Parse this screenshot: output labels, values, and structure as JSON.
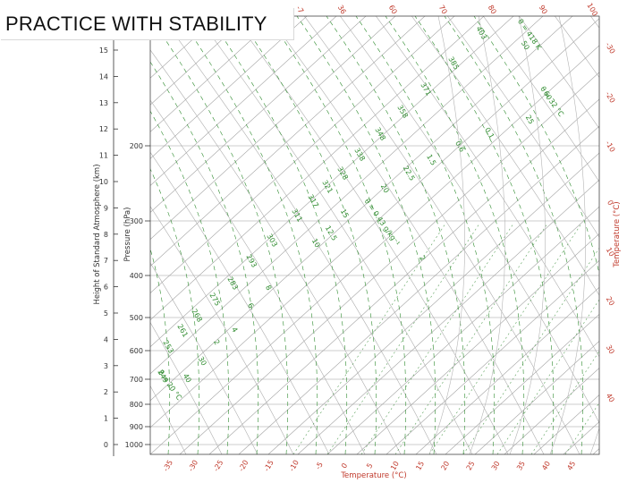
{
  "title": "PRACTICE WITH STABILITY",
  "colors": {
    "isotherm_isobar": "#9a9a9a",
    "dry_adiabat": "#a8a8a8",
    "moist_adiabat": "#2e8b2e",
    "mixing_ratio": "#5aa05a",
    "axis": "#333333",
    "temperature_axis": "#c0392b"
  },
  "chart_data": {
    "type": "diagram",
    "diagram": "skew-T log-P thermodynamic chart",
    "left_axis_label": "Height of Standard Atmosphere (km)",
    "height_ticks": [
      "0",
      "1",
      "2",
      "3",
      "4",
      "5",
      "6",
      "7",
      "8",
      "9",
      "10",
      "11",
      "12",
      "13",
      "14",
      "15"
    ],
    "pressure_axis_label": "Pressure (hPa)",
    "pressure_ticks": [
      "1000",
      "900",
      "800",
      "700",
      "600",
      "500",
      "400",
      "300",
      "200"
    ],
    "bottom_axis_label": "Temperature (°C)",
    "bottom_temp_ticks": [
      "-35",
      "-30",
      "-25",
      "-20",
      "-15",
      "-10",
      "-5",
      "0",
      "5",
      "10",
      "15",
      "20",
      "25",
      "30",
      "35",
      "40",
      "45"
    ],
    "right_axis_label": "Temperature (°C)",
    "right_temp_ticks": [
      "-30",
      "-20",
      "-10",
      "0",
      "10",
      "20",
      "30",
      "40"
    ],
    "top_ticks": [
      "-7",
      "36",
      "60",
      "70",
      "80",
      "90",
      "100"
    ],
    "green_labels": [
      "403",
      "385",
      "371",
      "358",
      "348",
      "338",
      "328",
      "321",
      "317",
      "311",
      "303",
      "293",
      "283",
      "275",
      "268",
      "261",
      "253",
      "249",
      "22.5",
      "20",
      "15",
      "12.5",
      "10",
      "8",
      "6",
      "4",
      "2",
      "30",
      "40",
      "50",
      "60",
      "25",
      "0.1",
      "0.6",
      "1.5",
      "2"
    ],
    "annotations": [
      "θ = 418 K",
      "θ = 32 °C",
      "θ = 20 °C",
      "θ = 0.43 g/kg⁻¹"
    ]
  }
}
